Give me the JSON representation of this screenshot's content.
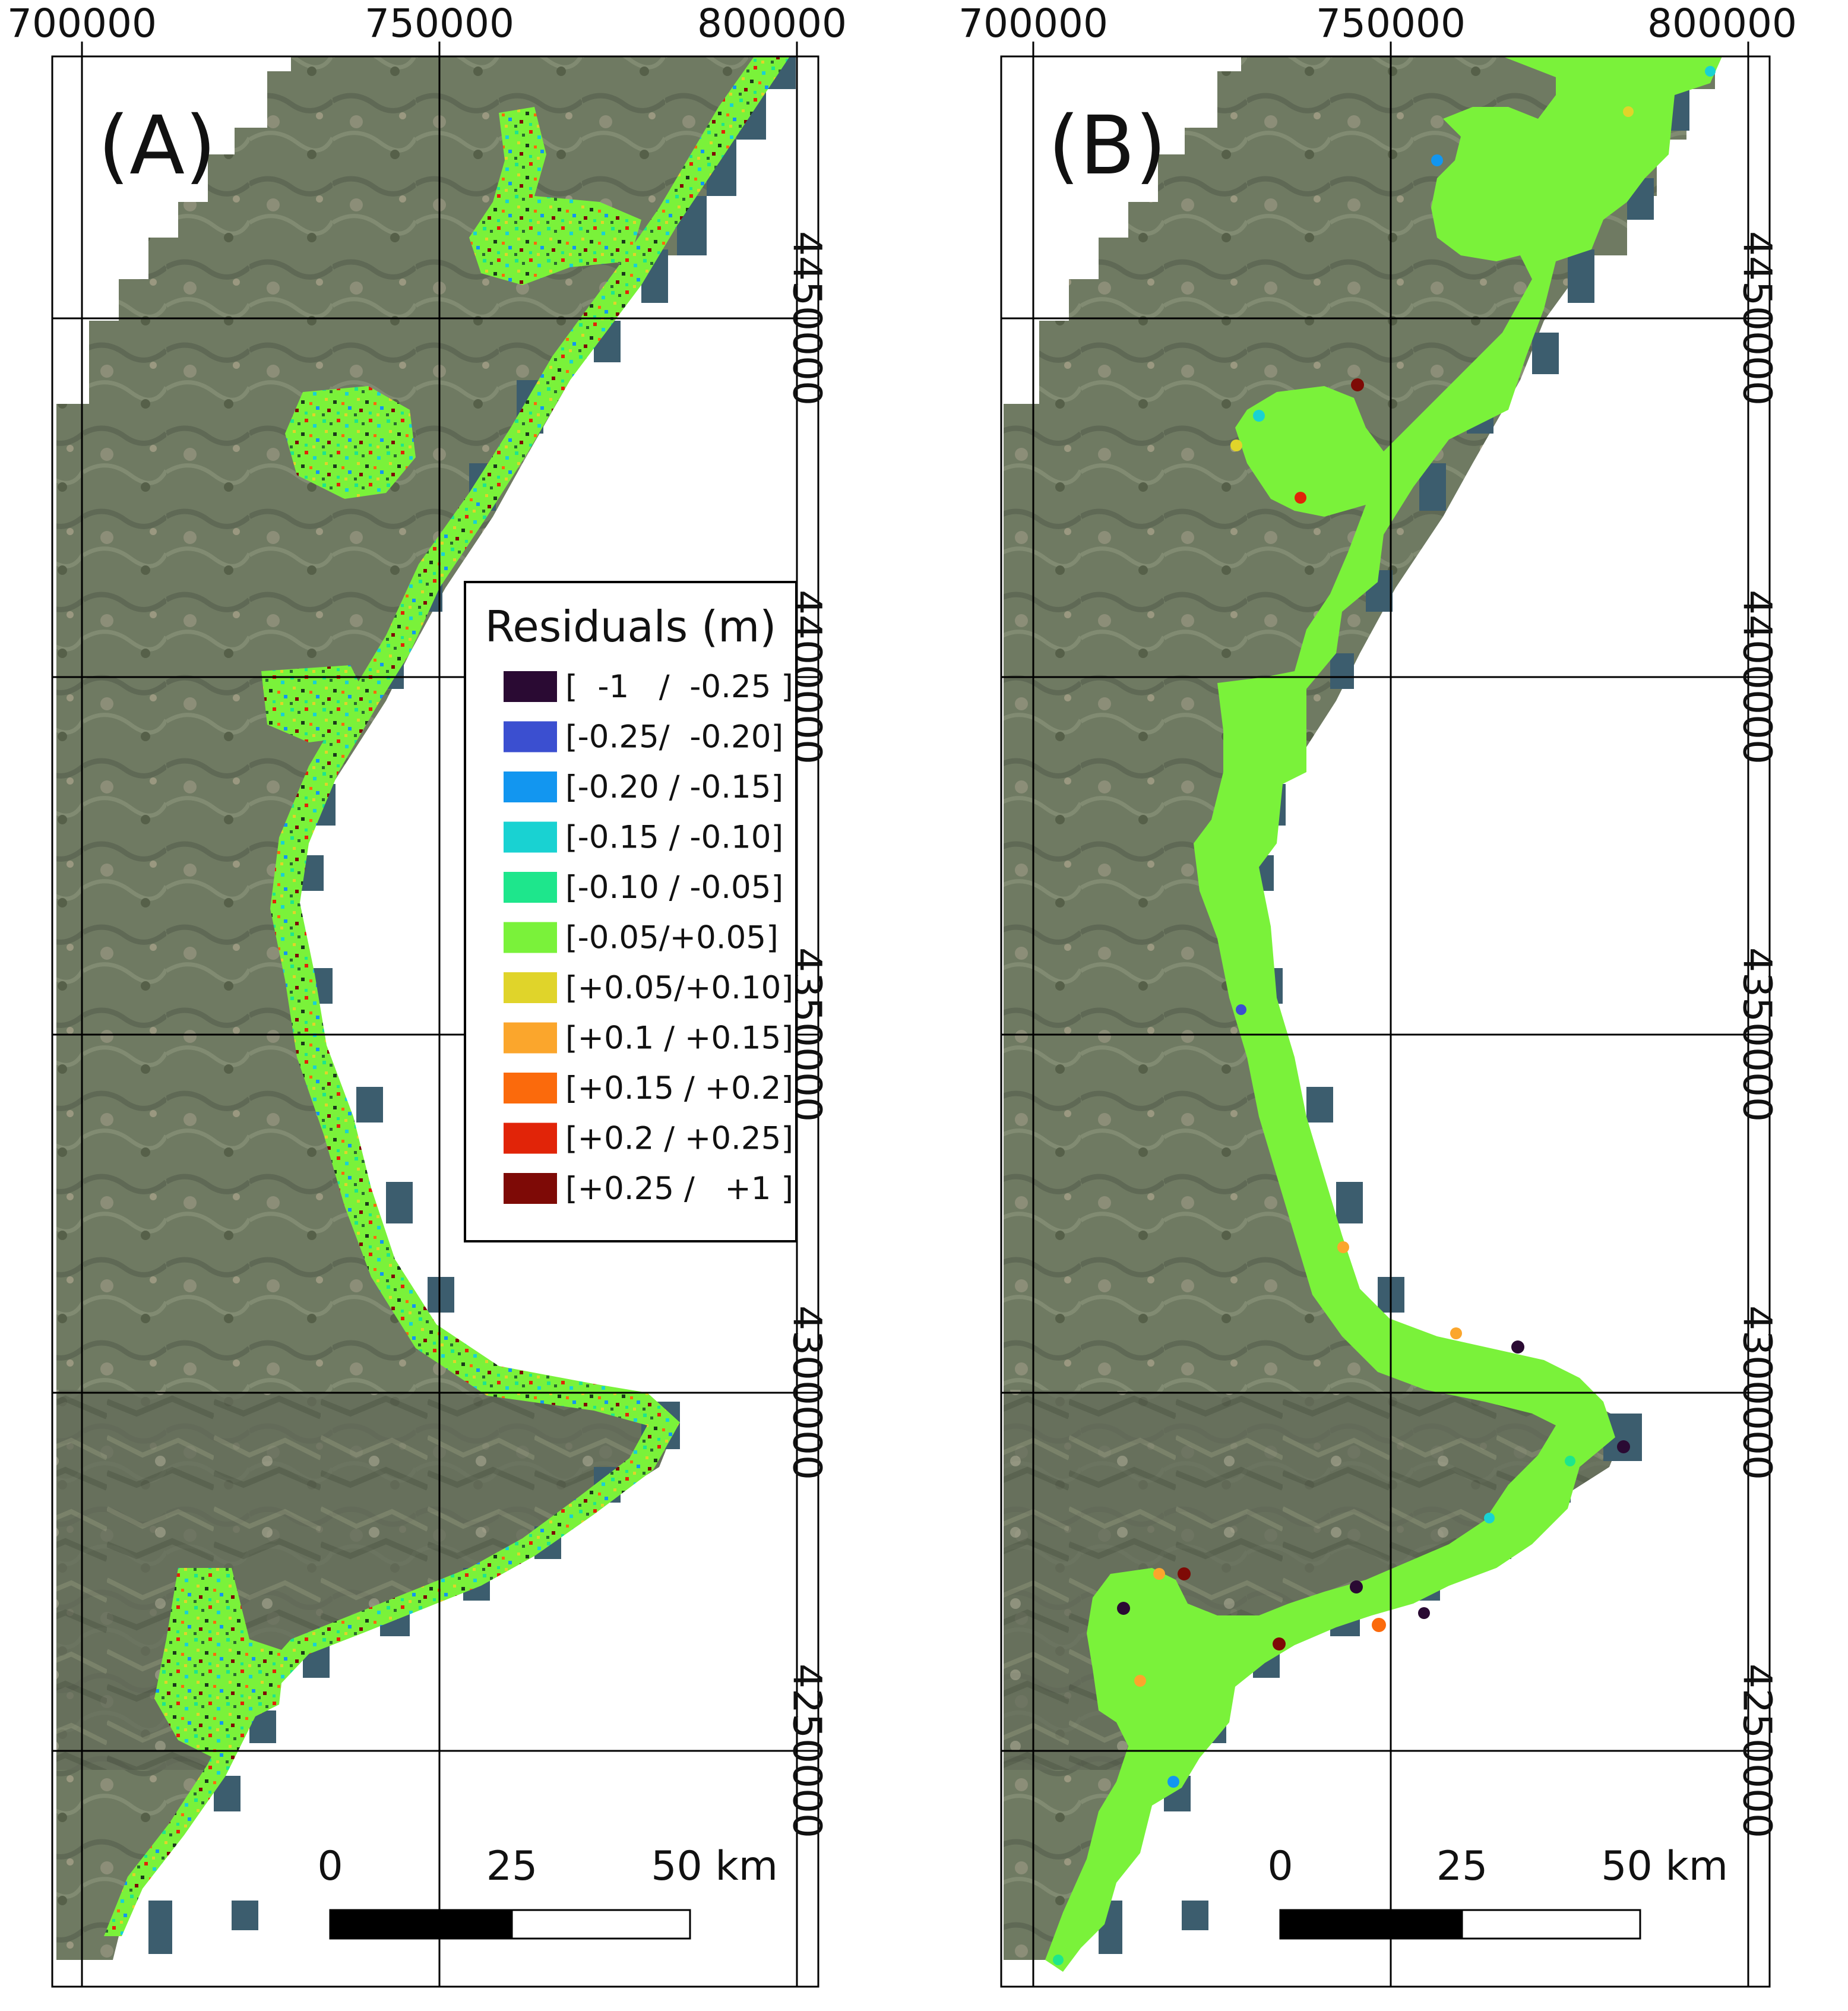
{
  "figure": {
    "x_ticks": [
      "700000",
      "750000",
      "800000"
    ],
    "y_ticks": [
      "4450000",
      "4400000",
      "4350000",
      "4300000",
      "4250000"
    ]
  },
  "panels": [
    {
      "label": "(A)",
      "style": "speckled",
      "scale_bar": {
        "labels": [
          "0",
          "25",
          "50 km"
        ]
      }
    },
    {
      "label": "(B)",
      "style": "smooth",
      "scale_bar": {
        "labels": [
          "0",
          "25",
          "50 km"
        ]
      }
    }
  ],
  "legend": {
    "title": "Residuals (m)",
    "items": [
      {
        "label": "[  -1   /  -0.25 ]",
        "color": "#2a0a33"
      },
      {
        "label": "[-0.25/  -0.20]",
        "color": "#3b4fd0"
      },
      {
        "label": "[-0.20 / -0.15]",
        "color": "#1296f0"
      },
      {
        "label": "[-0.15 / -0.10]",
        "color": "#19d2d2"
      },
      {
        "label": "[-0.10 / -0.05]",
        "color": "#1ee68c"
      },
      {
        "label": "[-0.05/+0.05]",
        "color": "#7af23a"
      },
      {
        "label": "[+0.05/+0.10]",
        "color": "#e0d42a"
      },
      {
        "label": "[+0.1 / +0.15]",
        "color": "#fba62c"
      },
      {
        "label": "[+0.15 / +0.2]",
        "color": "#fb6a0c"
      },
      {
        "label": "[+0.2 / +0.25]",
        "color": "#e12408"
      },
      {
        "label": "[+0.25 /   +1 ]",
        "color": "#7e0a06"
      }
    ]
  },
  "colors": {
    "land": "#6f7a62",
    "land_dark": "#5d6653",
    "sea": "#ffffff",
    "coast_cells": "#3c5d6e",
    "grid": "#000000",
    "residual_main": "#7af23a"
  }
}
